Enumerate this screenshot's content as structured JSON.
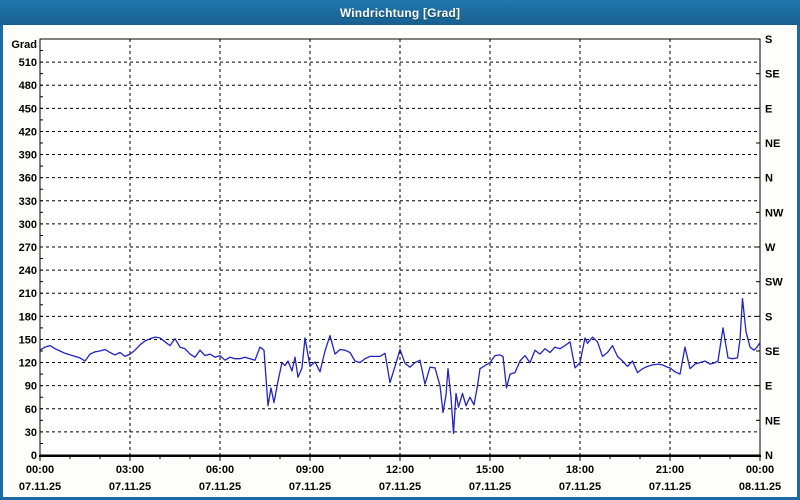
{
  "window": {
    "title": "Windrichtung [Grad]"
  },
  "colors": {
    "titlebar": "#1B6BA3",
    "title_text": "#FFFFFF",
    "line": "#2323C3",
    "grid": "#000000",
    "axis_text": "#000000",
    "plot_background": "#FFFFFF"
  },
  "chart_data": {
    "type": "line",
    "title": "Windrichtung [Grad]",
    "ylabel": "Grad",
    "ylim": [
      0,
      540
    ],
    "y_tick_interval": 30,
    "y_minor_tick_interval": 15,
    "y_tick_labels": [
      0,
      30,
      60,
      90,
      120,
      150,
      180,
      210,
      240,
      270,
      300,
      330,
      360,
      390,
      420,
      450,
      480,
      510
    ],
    "right_axis": {
      "tick_interval_deg": 45,
      "labels": [
        "N",
        "NE",
        "E",
        "SE",
        "S",
        "SW",
        "W",
        "NW",
        "N",
        "NE",
        "E",
        "SE",
        "S"
      ]
    },
    "x_axis": {
      "range_hours": [
        0,
        24
      ],
      "minor_tick_hours": 1,
      "ticks": [
        {
          "hour": 0,
          "time": "00:00",
          "date": "07.11.25"
        },
        {
          "hour": 3,
          "time": "03:00",
          "date": "07.11.25"
        },
        {
          "hour": 6,
          "time": "06:00",
          "date": "07.11.25"
        },
        {
          "hour": 9,
          "time": "09:00",
          "date": "07.11.25"
        },
        {
          "hour": 12,
          "time": "12:00",
          "date": "07.11.25"
        },
        {
          "hour": 15,
          "time": "15:00",
          "date": "07.11.25"
        },
        {
          "hour": 18,
          "time": "18:00",
          "date": "07.11.25"
        },
        {
          "hour": 21,
          "time": "21:00",
          "date": "07.11.25"
        },
        {
          "hour": 24,
          "time": "00:00",
          "date": "08.11.25"
        }
      ]
    },
    "grid": "dashed",
    "legend": "none",
    "series": [
      {
        "name": "Windrichtung",
        "unit": "Grad",
        "points_minute_deg": [
          [
            0,
            136
          ],
          [
            10,
            140
          ],
          [
            20,
            142
          ],
          [
            30,
            138
          ],
          [
            40,
            135
          ],
          [
            50,
            132
          ],
          [
            60,
            130
          ],
          [
            70,
            128
          ],
          [
            80,
            126
          ],
          [
            90,
            122
          ],
          [
            100,
            131
          ],
          [
            110,
            134
          ],
          [
            120,
            135
          ],
          [
            130,
            137
          ],
          [
            140,
            133
          ],
          [
            150,
            130
          ],
          [
            160,
            133
          ],
          [
            170,
            128
          ],
          [
            180,
            131
          ],
          [
            190,
            136
          ],
          [
            200,
            143
          ],
          [
            210,
            148
          ],
          [
            220,
            151
          ],
          [
            230,
            153
          ],
          [
            240,
            152
          ],
          [
            250,
            147
          ],
          [
            260,
            142
          ],
          [
            270,
            151
          ],
          [
            280,
            140
          ],
          [
            290,
            138
          ],
          [
            300,
            131
          ],
          [
            310,
            127
          ],
          [
            320,
            136
          ],
          [
            330,
            129
          ],
          [
            340,
            131
          ],
          [
            350,
            127
          ],
          [
            360,
            129
          ],
          [
            370,
            123
          ],
          [
            380,
            127
          ],
          [
            390,
            125
          ],
          [
            400,
            125
          ],
          [
            410,
            127
          ],
          [
            420,
            125
          ],
          [
            430,
            123
          ],
          [
            440,
            140
          ],
          [
            448,
            136
          ],
          [
            456,
            64
          ],
          [
            462,
            87
          ],
          [
            468,
            68
          ],
          [
            476,
            96
          ],
          [
            484,
            120
          ],
          [
            490,
            116
          ],
          [
            496,
            122
          ],
          [
            504,
            109
          ],
          [
            510,
            127
          ],
          [
            516,
            101
          ],
          [
            524,
            113
          ],
          [
            530,
            152
          ],
          [
            540,
            115
          ],
          [
            550,
            121
          ],
          [
            560,
            108
          ],
          [
            570,
            135
          ],
          [
            580,
            155
          ],
          [
            590,
            131
          ],
          [
            600,
            137
          ],
          [
            610,
            136
          ],
          [
            620,
            133
          ],
          [
            630,
            122
          ],
          [
            640,
            120
          ],
          [
            650,
            125
          ],
          [
            660,
            128
          ],
          [
            670,
            128
          ],
          [
            680,
            128
          ],
          [
            690,
            132
          ],
          [
            700,
            94
          ],
          [
            710,
            115
          ],
          [
            720,
            137
          ],
          [
            730,
            119
          ],
          [
            740,
            114
          ],
          [
            750,
            120
          ],
          [
            760,
            123
          ],
          [
            770,
            92
          ],
          [
            780,
            114
          ],
          [
            790,
            113
          ],
          [
            800,
            90
          ],
          [
            806,
            55
          ],
          [
            812,
            78
          ],
          [
            816,
            112
          ],
          [
            822,
            75
          ],
          [
            827,
            28
          ],
          [
            832,
            80
          ],
          [
            837,
            62
          ],
          [
            845,
            80
          ],
          [
            852,
            64
          ],
          [
            860,
            75
          ],
          [
            868,
            65
          ],
          [
            875,
            90
          ],
          [
            880,
            112
          ],
          [
            890,
            116
          ],
          [
            900,
            120
          ],
          [
            910,
            129
          ],
          [
            920,
            130
          ],
          [
            926,
            128
          ],
          [
            933,
            87
          ],
          [
            940,
            105
          ],
          [
            950,
            107
          ],
          [
            960,
            122
          ],
          [
            970,
            129
          ],
          [
            980,
            120
          ],
          [
            990,
            136
          ],
          [
            1000,
            131
          ],
          [
            1010,
            138
          ],
          [
            1020,
            133
          ],
          [
            1030,
            140
          ],
          [
            1040,
            138
          ],
          [
            1050,
            142
          ],
          [
            1060,
            147
          ],
          [
            1070,
            113
          ],
          [
            1080,
            120
          ],
          [
            1090,
            152
          ],
          [
            1095,
            145
          ],
          [
            1105,
            153
          ],
          [
            1115,
            147
          ],
          [
            1125,
            128
          ],
          [
            1135,
            133
          ],
          [
            1145,
            142
          ],
          [
            1155,
            128
          ],
          [
            1165,
            122
          ],
          [
            1175,
            115
          ],
          [
            1185,
            122
          ],
          [
            1195,
            107
          ],
          [
            1205,
            112
          ],
          [
            1215,
            115
          ],
          [
            1225,
            117
          ],
          [
            1235,
            118
          ],
          [
            1245,
            117
          ],
          [
            1255,
            114
          ],
          [
            1260,
            113
          ],
          [
            1270,
            108
          ],
          [
            1280,
            105
          ],
          [
            1290,
            140
          ],
          [
            1300,
            112
          ],
          [
            1310,
            118
          ],
          [
            1320,
            120
          ],
          [
            1330,
            122
          ],
          [
            1340,
            118
          ],
          [
            1350,
            120
          ],
          [
            1356,
            122
          ],
          [
            1366,
            165
          ],
          [
            1376,
            126
          ],
          [
            1385,
            125
          ],
          [
            1395,
            126
          ],
          [
            1400,
            150
          ],
          [
            1405,
            203
          ],
          [
            1412,
            160
          ],
          [
            1420,
            140
          ],
          [
            1428,
            136
          ],
          [
            1434,
            140
          ],
          [
            1440,
            146
          ]
        ]
      }
    ]
  }
}
